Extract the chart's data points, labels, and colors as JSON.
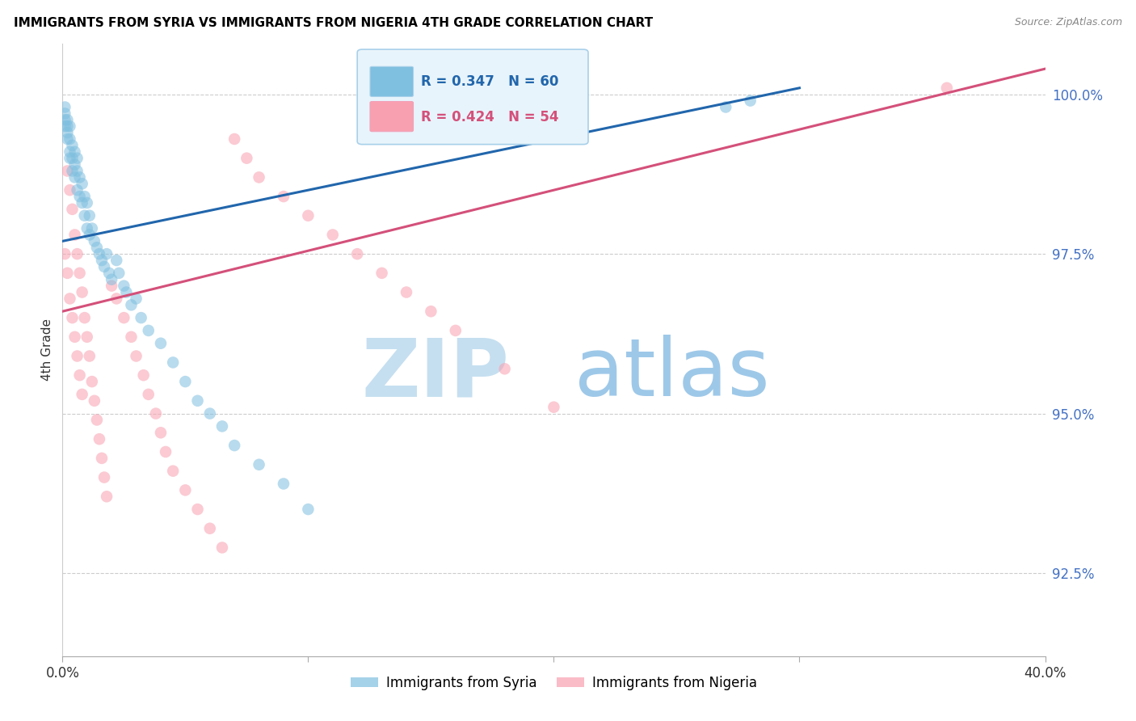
{
  "title": "IMMIGRANTS FROM SYRIA VS IMMIGRANTS FROM NIGERIA 4TH GRADE CORRELATION CHART",
  "source": "Source: ZipAtlas.com",
  "ylabel": "4th Grade",
  "y_ticks": [
    92.5,
    95.0,
    97.5,
    100.0
  ],
  "y_tick_labels": [
    "92.5%",
    "95.0%",
    "97.5%",
    "100.0%"
  ],
  "xlim": [
    0.0,
    0.4
  ],
  "ylim": [
    91.2,
    100.8
  ],
  "syria_color": "#7fbfdf",
  "nigeria_color": "#f9a0b0",
  "syria_line_color": "#2166ac",
  "nigeria_line_color": "#d4507a",
  "R_syria": 0.347,
  "N_syria": 60,
  "R_nigeria": 0.424,
  "N_nigeria": 54,
  "syria_scatter_x": [
    0.001,
    0.001,
    0.001,
    0.001,
    0.002,
    0.002,
    0.002,
    0.002,
    0.003,
    0.003,
    0.003,
    0.003,
    0.004,
    0.004,
    0.004,
    0.005,
    0.005,
    0.005,
    0.006,
    0.006,
    0.006,
    0.007,
    0.007,
    0.008,
    0.008,
    0.009,
    0.009,
    0.01,
    0.01,
    0.011,
    0.011,
    0.012,
    0.013,
    0.014,
    0.015,
    0.016,
    0.017,
    0.018,
    0.019,
    0.02,
    0.022,
    0.023,
    0.025,
    0.026,
    0.028,
    0.03,
    0.032,
    0.035,
    0.04,
    0.045,
    0.05,
    0.055,
    0.06,
    0.065,
    0.07,
    0.08,
    0.09,
    0.1,
    0.27,
    0.28
  ],
  "syria_scatter_y": [
    99.8,
    99.7,
    99.6,
    99.5,
    99.6,
    99.5,
    99.4,
    99.3,
    99.5,
    99.3,
    99.1,
    99.0,
    99.2,
    99.0,
    98.8,
    99.1,
    98.9,
    98.7,
    99.0,
    98.8,
    98.5,
    98.7,
    98.4,
    98.6,
    98.3,
    98.4,
    98.1,
    98.3,
    97.9,
    98.1,
    97.8,
    97.9,
    97.7,
    97.6,
    97.5,
    97.4,
    97.3,
    97.5,
    97.2,
    97.1,
    97.4,
    97.2,
    97.0,
    96.9,
    96.7,
    96.8,
    96.5,
    96.3,
    96.1,
    95.8,
    95.5,
    95.2,
    95.0,
    94.8,
    94.5,
    94.2,
    93.9,
    93.5,
    99.8,
    99.9
  ],
  "nigeria_scatter_x": [
    0.001,
    0.002,
    0.002,
    0.003,
    0.003,
    0.004,
    0.004,
    0.005,
    0.005,
    0.006,
    0.006,
    0.007,
    0.007,
    0.008,
    0.008,
    0.009,
    0.01,
    0.011,
    0.012,
    0.013,
    0.014,
    0.015,
    0.016,
    0.017,
    0.018,
    0.02,
    0.022,
    0.025,
    0.028,
    0.03,
    0.033,
    0.035,
    0.038,
    0.04,
    0.042,
    0.045,
    0.05,
    0.055,
    0.06,
    0.065,
    0.07,
    0.075,
    0.08,
    0.09,
    0.1,
    0.11,
    0.12,
    0.13,
    0.14,
    0.15,
    0.16,
    0.18,
    0.2,
    0.36
  ],
  "nigeria_scatter_y": [
    97.5,
    98.8,
    97.2,
    98.5,
    96.8,
    98.2,
    96.5,
    97.8,
    96.2,
    97.5,
    95.9,
    97.2,
    95.6,
    96.9,
    95.3,
    96.5,
    96.2,
    95.9,
    95.5,
    95.2,
    94.9,
    94.6,
    94.3,
    94.0,
    93.7,
    97.0,
    96.8,
    96.5,
    96.2,
    95.9,
    95.6,
    95.3,
    95.0,
    94.7,
    94.4,
    94.1,
    93.8,
    93.5,
    93.2,
    92.9,
    99.3,
    99.0,
    98.7,
    98.4,
    98.1,
    97.8,
    97.5,
    97.2,
    96.9,
    96.6,
    96.3,
    95.7,
    95.1,
    100.1
  ],
  "syria_line_x": [
    0.0,
    0.3
  ],
  "syria_line_y": [
    97.7,
    100.1
  ],
  "nigeria_line_x": [
    0.0,
    0.4
  ],
  "nigeria_line_y": [
    96.6,
    100.4
  ]
}
